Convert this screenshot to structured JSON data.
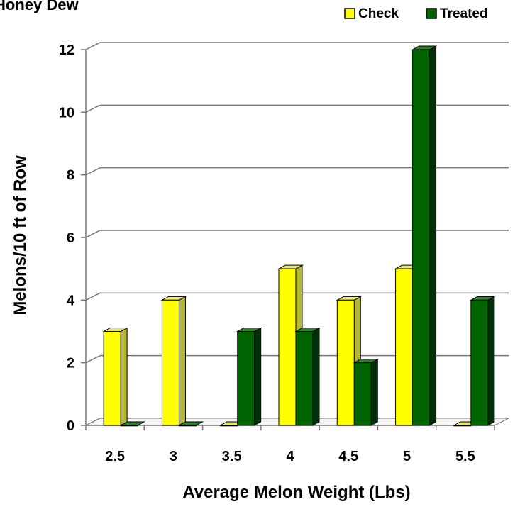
{
  "chart_data": {
    "type": "bar",
    "title": "Honey Dew",
    "xlabel": "Average Melon Weight (Lbs)",
    "ylabel": "Melons/10 ft of Row",
    "categories": [
      "2.5",
      "3",
      "3.5",
      "4",
      "4.5",
      "5",
      "5.5"
    ],
    "series": [
      {
        "name": "Check",
        "values": [
          3,
          4,
          0,
          5,
          4,
          5,
          0
        ],
        "color": "#ffff00",
        "side_color": "#b5b53c",
        "top_color": "#e6e66a"
      },
      {
        "name": "Treated",
        "values": [
          0,
          0,
          3,
          3,
          2,
          12,
          4
        ],
        "color": "#006400",
        "side_color": "#00300a",
        "top_color": "#2f7d2f"
      }
    ],
    "ylim": [
      0,
      12
    ],
    "yticks": [
      "0",
      "2",
      "4",
      "6",
      "8",
      "10",
      "12"
    ],
    "grid": true,
    "legend_position": "top-right",
    "style": "3d-clustered-column"
  }
}
